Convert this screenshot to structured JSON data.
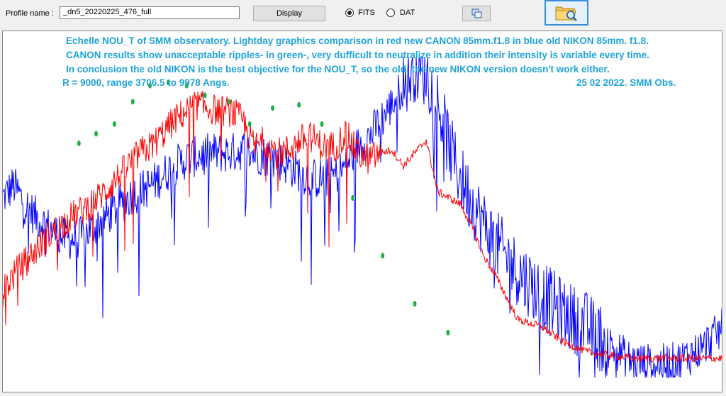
{
  "toolbar": {
    "profile_label": "Profile name :",
    "profile_value": "_dn5_20220225_476_full",
    "display_label": "Display",
    "radio_fits_label": "FITS",
    "radio_dat_label": "DAT",
    "selected_format": "FITS",
    "copy_icon": "copy-windows-icon",
    "open_icon": "folder-search-icon"
  },
  "annotations": {
    "line1": "Echelle NOU_T of SMM observatory.  Lightday graphics comparison in red new CANON 85mm.f1.8 in blue old NIKON 85mm. f1.8.",
    "line2": "CANON results show unacceptable ripples- in green-, very dufficult to neutralize in addition their  intensity is variable every time.",
    "line3": "In conclusion the old NIKON is the best objective for the NOU_T, so the old, the new NIKON version doesn't work either.",
    "line4": "R = 9000, range 3706.5 to 9978 Angs.",
    "line5": "25 02 2022. SMM Obs."
  },
  "colors": {
    "annotation_text": "#1fa3d8",
    "nikon_series": "#0000ff",
    "canon_series": "#ff0000",
    "ripple_markers": "#22b04a"
  },
  "chart_data": {
    "type": "line",
    "xlim": [
      3706.5,
      9978
    ],
    "grid": false,
    "series": [
      {
        "name": "old NIKON 85mm. f1.8",
        "color": "#0000ff",
        "x": [
          3706.5,
          3800,
          3900,
          4000,
          4100,
          4200,
          4300,
          4400,
          4500,
          4600,
          4700,
          4800,
          4900,
          5000,
          5100,
          5200,
          5300,
          5400,
          5500,
          5600,
          5700,
          5800,
          5900,
          6000,
          6100,
          6200,
          6300,
          6400,
          6500,
          6600,
          6700,
          6800,
          6900,
          7000,
          7100,
          7200,
          7300,
          7400,
          7500,
          7600,
          7700,
          7800,
          7900,
          8000,
          8200,
          8400,
          8600,
          8800,
          9000,
          9200,
          9400,
          9600,
          9800,
          9978
        ],
        "y": [
          0.56,
          0.6,
          0.54,
          0.5,
          0.47,
          0.44,
          0.43,
          0.44,
          0.47,
          0.5,
          0.53,
          0.56,
          0.58,
          0.6,
          0.63,
          0.66,
          0.68,
          0.69,
          0.7,
          0.7,
          0.7,
          0.71,
          0.7,
          0.69,
          0.68,
          0.66,
          0.64,
          0.62,
          0.62,
          0.63,
          0.66,
          0.72,
          0.75,
          0.8,
          0.85,
          0.91,
          0.97,
          0.95,
          0.86,
          0.72,
          0.62,
          0.55,
          0.48,
          0.42,
          0.33,
          0.26,
          0.2,
          0.16,
          0.1,
          0.05,
          0.04,
          0.05,
          0.09,
          0.15
        ]
      },
      {
        "name": "new CANON 85mm.f1.8",
        "color": "#ff0000",
        "x": [
          3706.5,
          3800,
          3900,
          4000,
          4100,
          4200,
          4300,
          4400,
          4500,
          4600,
          4700,
          4800,
          4900,
          5000,
          5100,
          5200,
          5300,
          5400,
          5500,
          5600,
          5700,
          5800,
          5900,
          6000,
          6100,
          6200,
          6300,
          6400,
          6500,
          6600,
          6700,
          6800,
          6900,
          7000,
          7100,
          7200,
          7300,
          7400,
          7500,
          7600,
          7700,
          7800,
          7900,
          8000,
          8200,
          8400,
          8600,
          8800,
          9000,
          9200,
          9400,
          9600,
          9800,
          9978
        ],
        "y": [
          0.27,
          0.32,
          0.36,
          0.4,
          0.44,
          0.47,
          0.5,
          0.52,
          0.55,
          0.58,
          0.62,
          0.66,
          0.7,
          0.72,
          0.76,
          0.8,
          0.83,
          0.85,
          0.84,
          0.83,
          0.83,
          0.8,
          0.72,
          0.74,
          0.7,
          0.71,
          0.74,
          0.75,
          0.72,
          0.72,
          0.76,
          0.7,
          0.68,
          0.7,
          0.71,
          0.66,
          0.7,
          0.74,
          0.58,
          0.56,
          0.54,
          0.47,
          0.38,
          0.32,
          0.18,
          0.16,
          0.11,
          0.08,
          0.07,
          0.06,
          0.06,
          0.06,
          0.06,
          0.06
        ]
      }
    ],
    "ripple_markers": [
      {
        "x": 4370,
        "y": 0.73
      },
      {
        "x": 4520,
        "y": 0.76
      },
      {
        "x": 4680,
        "y": 0.79
      },
      {
        "x": 4840,
        "y": 0.86
      },
      {
        "x": 4990,
        "y": 0.91
      },
      {
        "x": 5150,
        "y": 0.92
      },
      {
        "x": 5310,
        "y": 0.91
      },
      {
        "x": 5470,
        "y": 0.88
      },
      {
        "x": 5680,
        "y": 0.86
      },
      {
        "x": 5860,
        "y": 0.79
      },
      {
        "x": 6060,
        "y": 0.84
      },
      {
        "x": 6290,
        "y": 0.85
      },
      {
        "x": 6490,
        "y": 0.79
      },
      {
        "x": 6760,
        "y": 0.56
      },
      {
        "x": 7020,
        "y": 0.38
      },
      {
        "x": 7300,
        "y": 0.23
      },
      {
        "x": 7590,
        "y": 0.14
      }
    ]
  }
}
